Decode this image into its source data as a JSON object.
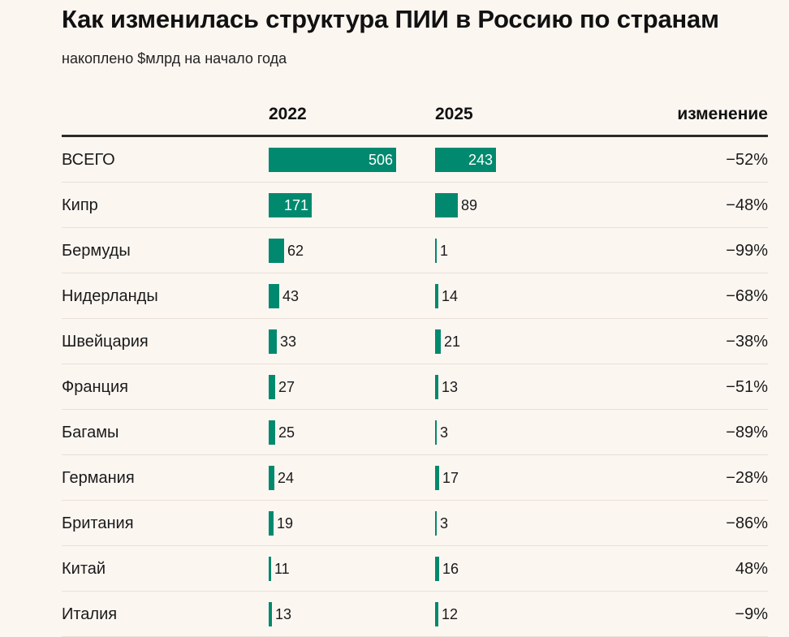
{
  "title": "Как изменилась структура ПИИ в Россию по странам",
  "subtitle": "накоплено $млрд на начало года",
  "columns": {
    "year1": "2022",
    "year2": "2025",
    "change": "изменение"
  },
  "colors": {
    "bar": "#00896e",
    "background": "#fcf6f1"
  },
  "chart_data": {
    "type": "bar",
    "title": "Как изменилась структура ПИИ в Россию по странам",
    "subtitle": "накоплено $млрд на начало года",
    "categories": [
      "ВСЕГО",
      "Кипр",
      "Бермуды",
      "Нидерланды",
      "Швейцария",
      "Франция",
      "Багамы",
      "Германия",
      "Британия",
      "Китай",
      "Италия"
    ],
    "series": [
      {
        "name": "2022",
        "values": [
          506,
          171,
          62,
          43,
          33,
          27,
          25,
          24,
          19,
          11,
          13
        ]
      },
      {
        "name": "2025",
        "values": [
          243,
          89,
          1,
          14,
          21,
          13,
          3,
          17,
          3,
          16,
          12
        ]
      }
    ],
    "change": [
      "−52%",
      "−48%",
      "−99%",
      "−68%",
      "−38%",
      "−51%",
      "−89%",
      "−28%",
      "−86%",
      "48%",
      "−9%"
    ],
    "xlabel": "",
    "ylabel": "",
    "grid": false
  }
}
